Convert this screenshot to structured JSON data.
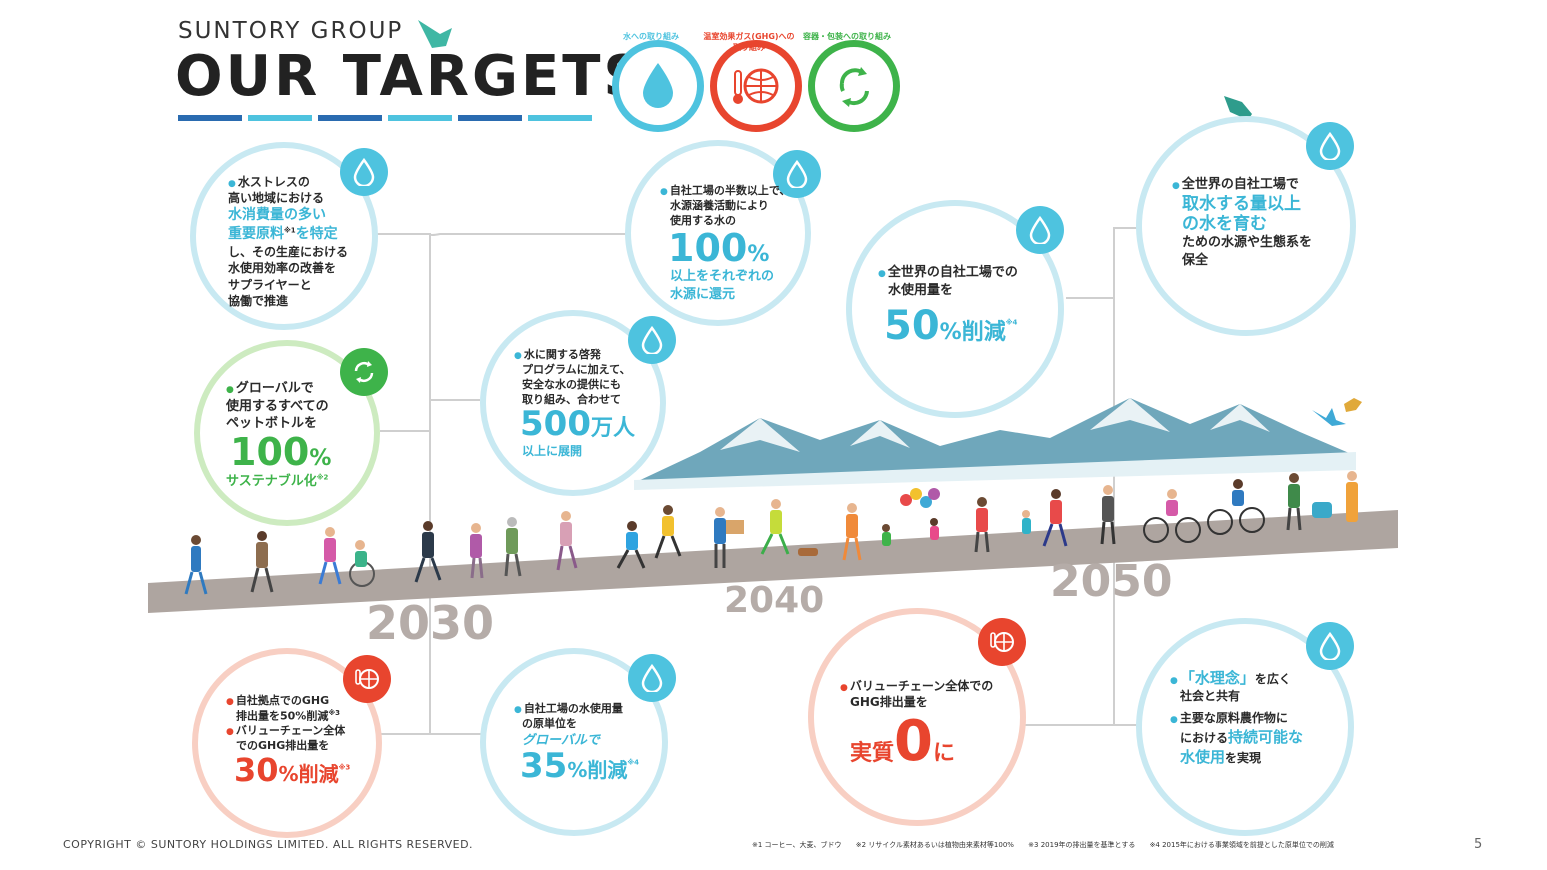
{
  "header": {
    "brand": "SUNTORY GROUP",
    "title": "OUR TARGETS"
  },
  "pillars": [
    {
      "caption": "水への取り組み",
      "color": "#4ec3df",
      "icon": "water-drop-icon"
    },
    {
      "caption": "温室効果ガス(GHG)への取り組み",
      "color": "#e8452e",
      "icon": "globe-thermometer-icon"
    },
    {
      "caption": "容器・包装への取り組み",
      "color": "#3eb34a",
      "icon": "recycle-icon"
    }
  ],
  "targets": {
    "water_stress": {
      "line1": "水ストレスの",
      "line2": "高い地域における",
      "hl1": "水消費量の多い",
      "hl2": "重要原料",
      "note": "※1",
      "hl3": "を特定",
      "line3": "し、その生産における",
      "line4": "水使用効率の改善を",
      "line5": "サプライヤーと",
      "line6": "協働で推進"
    },
    "pet_bottles": {
      "line1": "グローバルで",
      "line2": "使用するすべての",
      "line3": "ペットボトルを",
      "big": "100",
      "unit": "%",
      "tail": "サステナブル化",
      "note": "※2"
    },
    "ghg_2030": {
      "b1_line1": "自社拠点でのGHG",
      "b1_line2": "排出量を50%削減",
      "b1_note": "※3",
      "b2_line1": "バリューチェーン全体",
      "b2_line2": "でのGHG排出量を",
      "big": "30",
      "unit": "%削減",
      "note": "※3"
    },
    "replenish_100": {
      "line1": "自社工場の半数以上で、",
      "line2": "水源涵養活動により",
      "line3": "使用する水の",
      "big": "100",
      "unit": "%",
      "tail1": "以上をそれぞれの",
      "tail2": "水源に還元"
    },
    "education_5m": {
      "line1": "水に関する啓発",
      "line2": "プログラムに加えて、",
      "line3": "安全な水の提供にも",
      "line4": "取り組み、合わせて",
      "big": "500",
      "unit": "万人",
      "tail": "以上に展開"
    },
    "water_35": {
      "line1": "自社工場の水使用量",
      "line2": "の原単位を",
      "hl": "グローバルで",
      "big": "35",
      "unit": "%削減",
      "note": "※4"
    },
    "water_50": {
      "line1": "全世界の自社工場での",
      "line2": "水使用量を",
      "big": "50",
      "unit": "%削減",
      "note": "※4"
    },
    "water_positive": {
      "line1": "全世界の自社工場で",
      "hl1": "取水する量以上",
      "hl2": "の水を育む",
      "line2": "ための水源や生態系を",
      "line3": "保全"
    },
    "net_zero": {
      "line1": "バリューチェーン全体での",
      "line2": "GHG排出量を",
      "pre": "実質",
      "big": "0",
      "post": "に"
    },
    "philosophy": {
      "b1_hl": "「水理念」",
      "b1_tail": "を広く",
      "b1_line2": "社会と共有",
      "b2_line1": "主要な原料農作物に",
      "b2_pre": "における",
      "b2_hl1": "持続可能な",
      "b2_hl2": "水使用",
      "b2_tail": "を実現"
    }
  },
  "timeline": {
    "years": [
      "2030",
      "2040",
      "2050"
    ]
  },
  "footer": {
    "copyright": "COPYRIGHT © SUNTORY HOLDINGS LIMITED. ALL RIGHTS RESERVED.",
    "notes": [
      "※1 コーヒー、大麦、ブドウ",
      "※2 リサイクル素材あるいは植物由来素材等100%",
      "※3 2019年の排出量を基準とする",
      "※4 2015年における事業領域を前提とした原単位での削減"
    ],
    "page": "5"
  }
}
